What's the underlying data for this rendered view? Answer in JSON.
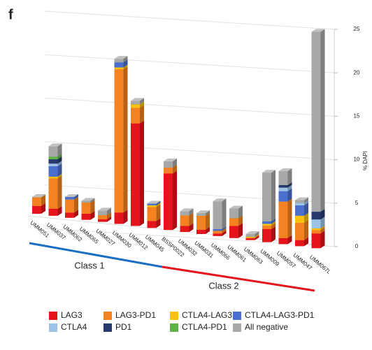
{
  "chart_data": {
    "type": "bar3d_stacked",
    "panel_label": "f",
    "y_label": "% DAPI",
    "categories": [
      "UMM051",
      "UMM037",
      "UMM062",
      "UMM065",
      "UMM027",
      "UMM030",
      "UMM012",
      "UMM045",
      "BSSP0022",
      "UMM032",
      "UMM031",
      "UMM066",
      "UMM061",
      "UMM063",
      "UMM009",
      "UMM057",
      "UMM047",
      "UMM067L"
    ],
    "series": [
      {
        "name": "LAG3",
        "color": "#e3141b",
        "values": [
          0.9,
          0.8,
          0.6,
          0.7,
          0.3,
          1.3,
          11.8,
          0.8,
          6.5,
          0.7,
          0.5,
          0.3,
          1.4,
          0.2,
          1.5,
          0.7,
          0.7,
          1.7
        ]
      },
      {
        "name": "LAG3-PD1",
        "color": "#f58220",
        "values": [
          1,
          3.5,
          1.5,
          1.3,
          0.5,
          16.5,
          1.8,
          1.6,
          0.7,
          1.2,
          1.6,
          0.3,
          0.9,
          0.1,
          0.4,
          4.2,
          2.0,
          0.4
        ]
      },
      {
        "name": "CTLA4-LAG3",
        "color": "#fcc20f",
        "values": [
          0,
          0.2,
          0,
          0,
          0,
          0.2,
          0.4,
          0.2,
          0,
          0,
          0,
          0,
          0,
          0.1,
          0.2,
          0,
          0.8,
          0.2
        ]
      },
      {
        "name": "CTLA4-LAG3-PD1",
        "color": "#4a6fcf",
        "values": [
          0,
          1.2,
          0.3,
          0,
          0,
          0.6,
          0,
          0.2,
          0,
          0,
          0,
          0.2,
          0,
          0,
          0.3,
          1.2,
          1.2,
          0
        ]
      },
      {
        "name": "CTLA4",
        "color": "#9cc3e6",
        "values": [
          0,
          0.3,
          0,
          0,
          0,
          0,
          0,
          0,
          0,
          0,
          0,
          0,
          0,
          0,
          0,
          0.4,
          0.3,
          1.0
        ]
      },
      {
        "name": "PD1",
        "color": "#263a6e",
        "values": [
          0,
          0.5,
          0,
          0,
          0,
          0,
          0,
          0,
          0,
          0,
          0,
          0,
          0,
          0,
          0,
          0.3,
          0,
          0.9
        ]
      },
      {
        "name": "CTLA4-PD1",
        "color": "#5db345",
        "values": [
          0,
          0.3,
          0,
          0,
          0,
          0,
          0,
          0,
          0,
          0,
          0,
          0,
          0,
          0,
          0,
          0,
          0,
          0
        ]
      },
      {
        "name": "All negative",
        "color": "#a8a8a8",
        "values": [
          0,
          1.2,
          0,
          0.2,
          0.5,
          0.4,
          0.4,
          0,
          0.7,
          0.5,
          0.3,
          3.2,
          1.1,
          0.3,
          5.6,
          1.6,
          0.3,
          20.7
        ]
      }
    ],
    "ylim": [
      0,
      25
    ],
    "yticks": [
      0,
      5,
      10,
      15,
      20,
      25
    ],
    "grid": true,
    "annotations": [
      "Class 1",
      "Class 2"
    ]
  }
}
